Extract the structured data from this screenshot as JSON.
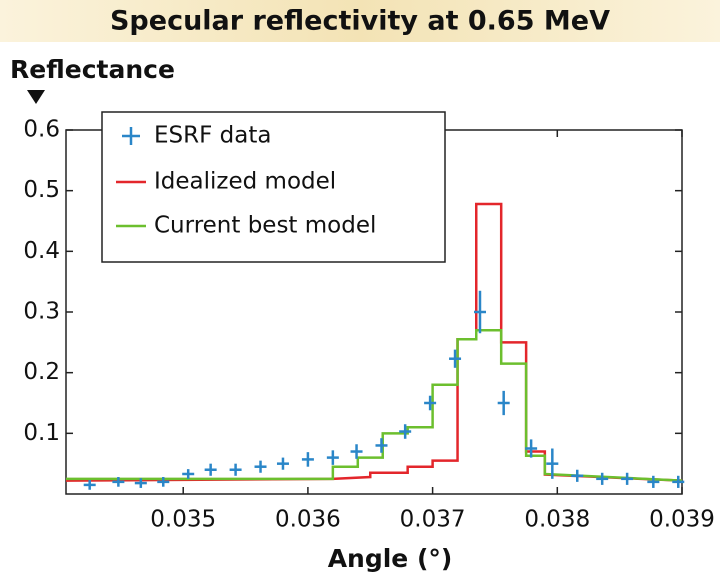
{
  "chart_data": {
    "type": "step-line",
    "title": "Specular reflectivity at 0.65 MeV",
    "y_label": "Reflectance",
    "x_label": "Angle (°)",
    "xlim": [
      0.03406,
      0.039
    ],
    "ylim": [
      0,
      0.6
    ],
    "xticks": [
      0.035,
      0.036,
      0.037,
      0.038,
      0.039
    ],
    "yticks": [
      0.1,
      0.2,
      0.3,
      0.4,
      0.5,
      0.6
    ],
    "grid": false,
    "legend": "upper left",
    "points": {
      "name": "ESRF data",
      "color": "#2a86c8",
      "x": [
        0.03425,
        0.03448,
        0.03466,
        0.03484,
        0.03504,
        0.03522,
        0.03542,
        0.03562,
        0.0358,
        0.036,
        0.0362,
        0.03639,
        0.03659,
        0.03678,
        0.03698,
        0.03718,
        0.03738,
        0.03757,
        0.03779,
        0.03796,
        0.03816,
        0.03836,
        0.03856,
        0.03877,
        0.03897
      ],
      "values": [
        0.015,
        0.02,
        0.018,
        0.02,
        0.033,
        0.04,
        0.04,
        0.045,
        0.05,
        0.057,
        0.06,
        0.07,
        0.08,
        0.103,
        0.15,
        0.223,
        0.3,
        0.15,
        0.075,
        0.05,
        0.03,
        0.025,
        0.025,
        0.02,
        0.02
      ],
      "errors": [
        0.008,
        0.008,
        0.008,
        0.008,
        0.008,
        0.01,
        0.01,
        0.01,
        0.01,
        0.012,
        0.012,
        0.012,
        0.012,
        0.012,
        0.012,
        0.015,
        0.035,
        0.02,
        0.015,
        0.025,
        0.01,
        0.01,
        0.01,
        0.01,
        0.01
      ]
    },
    "series": [
      {
        "name": "Idealized model",
        "color": "#e3262b",
        "x": [
          0.03406,
          0.0362,
          0.0365,
          0.0365,
          0.0368,
          0.0368,
          0.037,
          0.037,
          0.0372,
          0.0372,
          0.03735,
          0.03735,
          0.03755,
          0.03755,
          0.03775,
          0.03775,
          0.0379,
          0.0379,
          0.039
        ],
        "values": [
          0.022,
          0.025,
          0.028,
          0.035,
          0.035,
          0.045,
          0.045,
          0.055,
          0.055,
          0.255,
          0.255,
          0.478,
          0.478,
          0.25,
          0.25,
          0.07,
          0.07,
          0.032,
          0.022
        ]
      },
      {
        "name": "Current best model",
        "color": "#6cbf2e",
        "x": [
          0.03406,
          0.0362,
          0.0362,
          0.0364,
          0.0364,
          0.0366,
          0.0366,
          0.0368,
          0.0368,
          0.037,
          0.037,
          0.0372,
          0.0372,
          0.03735,
          0.03735,
          0.03755,
          0.03755,
          0.03775,
          0.03775,
          0.0379,
          0.0379,
          0.039
        ],
        "values": [
          0.025,
          0.025,
          0.045,
          0.045,
          0.06,
          0.06,
          0.1,
          0.1,
          0.11,
          0.11,
          0.18,
          0.18,
          0.255,
          0.255,
          0.27,
          0.27,
          0.215,
          0.215,
          0.063,
          0.063,
          0.033,
          0.022
        ]
      }
    ]
  }
}
